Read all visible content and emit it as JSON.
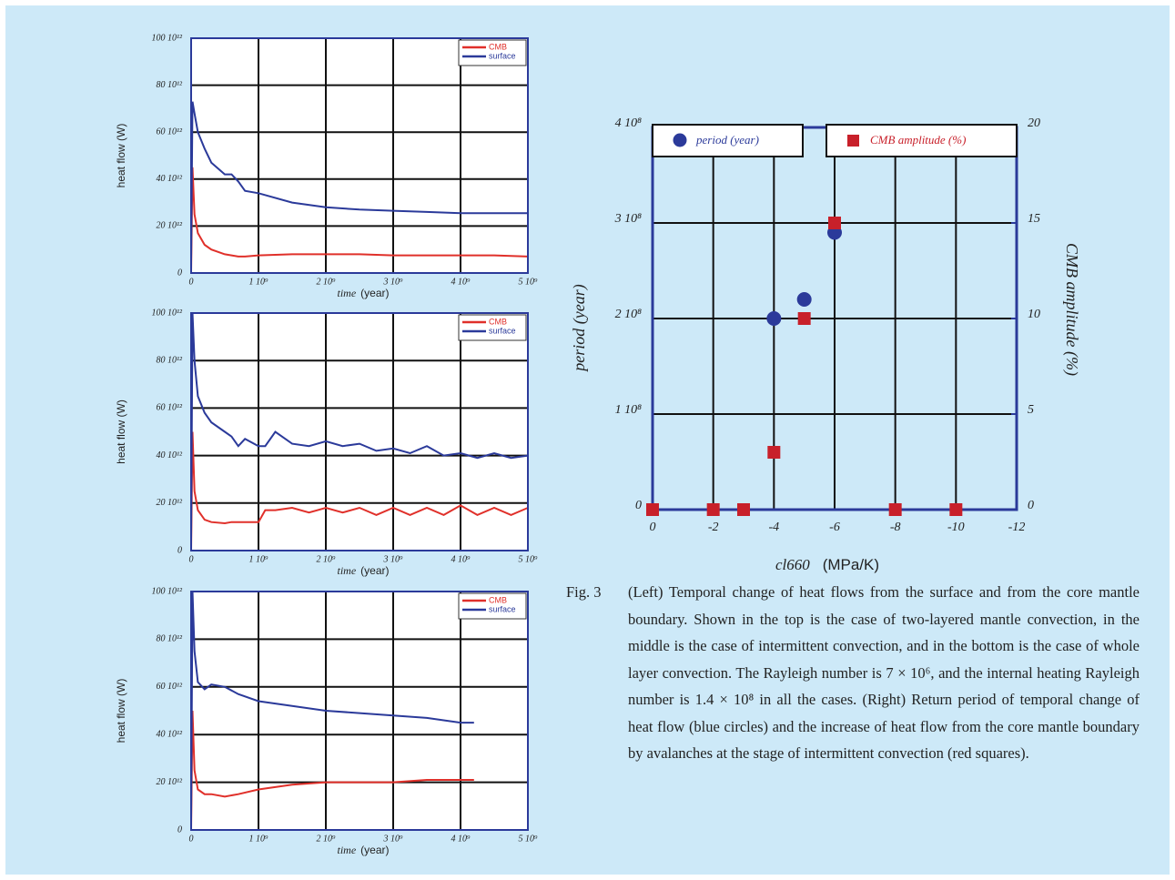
{
  "chart_data": [
    {
      "type": "line",
      "ylabel": "heat flow (W)",
      "xlabel": "time",
      "xlabel_unit": "(year)",
      "x": [
        0,
        20000000,
        50000000,
        100000000,
        200000000,
        300000000,
        500000000,
        600000000,
        700000000,
        800000000,
        1000000000,
        1500000000,
        2000000000,
        2500000000,
        3000000000,
        3500000000,
        4000000000,
        4500000000,
        5000000000
      ],
      "series": [
        {
          "name": "CMB",
          "color": "#e0302a",
          "values": [
            0,
            45000000000000,
            25000000000000,
            17000000000000,
            12000000000000,
            10000000000000,
            8000000000000,
            7500000000000,
            7000000000000,
            7000000000000,
            7500000000000,
            8000000000000,
            8000000000000,
            8000000000000,
            7500000000000,
            7500000000000,
            7500000000000,
            7500000000000,
            7000000000000
          ]
        },
        {
          "name": "surface",
          "color": "#2b3a9a",
          "values": [
            5000000000000,
            73000000000000,
            68000000000000,
            60000000000000,
            53000000000000,
            47000000000000,
            42000000000000,
            42000000000000,
            39000000000000,
            35000000000000,
            34000000000000,
            30000000000000,
            28000000000000,
            27000000000000,
            26500000000000,
            26000000000000,
            25500000000000,
            25500000000000,
            25500000000000
          ]
        }
      ],
      "xlim": [
        0,
        5000000000
      ],
      "xticks": [
        0,
        {
          "value": 1000000000,
          "label": "1 10⁹"
        },
        {
          "value": 2000000000,
          "label": "2 10⁹"
        },
        {
          "value": 3000000000,
          "label": "3 10⁹"
        },
        {
          "value": 4000000000,
          "label": "4 10⁹"
        },
        {
          "value": 5000000000,
          "label": "5 10⁹"
        }
      ],
      "ylim": [
        0,
        100000000000000
      ],
      "yticks": [
        0,
        {
          "value": 20000000000000,
          "label": "20 10¹²"
        },
        {
          "value": 40000000000000,
          "label": "40 10¹²"
        },
        {
          "value": 60000000000000,
          "label": "60 10¹²"
        },
        {
          "value": 80000000000000,
          "label": "80 10¹²"
        },
        {
          "value": 100000000000000,
          "label": "100 10¹²"
        }
      ],
      "grid": true,
      "legend": "upper right"
    },
    {
      "type": "line",
      "ylabel": "heat flow (W)",
      "xlabel": "time",
      "xlabel_unit": "(year)",
      "x": [
        0,
        20000000,
        50000000,
        100000000,
        200000000,
        300000000,
        500000000,
        600000000,
        700000000,
        800000000,
        1000000000,
        1100000000,
        1250000000,
        1500000000,
        1750000000,
        2000000000,
        2250000000,
        2500000000,
        2750000000,
        3000000000,
        3250000000,
        3500000000,
        3750000000,
        4000000000,
        4250000000,
        4500000000,
        4750000000,
        5000000000
      ],
      "series": [
        {
          "name": "CMB",
          "color": "#e0302a",
          "values": [
            0,
            50000000000000,
            25000000000000,
            17000000000000,
            13000000000000,
            12000000000000,
            11500000000000,
            12000000000000,
            12000000000000,
            12000000000000,
            12000000000000,
            17000000000000,
            17000000000000,
            18000000000000,
            16000000000000,
            18000000000000,
            16000000000000,
            18000000000000,
            15000000000000,
            18000000000000,
            15000000000000,
            18000000000000,
            15000000000000,
            19000000000000,
            15000000000000,
            18000000000000,
            15000000000000,
            18000000000000
          ]
        },
        {
          "name": "surface",
          "color": "#2b3a9a",
          "values": [
            5000000000000,
            100000000000000,
            80000000000000,
            65000000000000,
            58000000000000,
            54000000000000,
            50000000000000,
            48000000000000,
            44000000000000,
            47000000000000,
            44000000000000,
            44000000000000,
            50000000000000,
            45000000000000,
            44000000000000,
            46000000000000,
            44000000000000,
            45000000000000,
            42000000000000,
            43000000000000,
            41000000000000,
            44000000000000,
            40000000000000,
            41000000000000,
            39000000000000,
            41000000000000,
            39000000000000,
            40000000000000
          ]
        }
      ],
      "xlim": [
        0,
        5000000000
      ],
      "xticks": [
        0,
        {
          "value": 1000000000,
          "label": "1 10⁹"
        },
        {
          "value": 2000000000,
          "label": "2 10⁹"
        },
        {
          "value": 3000000000,
          "label": "3 10⁹"
        },
        {
          "value": 4000000000,
          "label": "4 10⁹"
        },
        {
          "value": 5000000000,
          "label": "5 10⁹"
        }
      ],
      "ylim": [
        0,
        100000000000000
      ],
      "yticks": [
        0,
        {
          "value": 20000000000000,
          "label": "20 10¹²"
        },
        {
          "value": 40000000000000,
          "label": "40 10¹²"
        },
        {
          "value": 60000000000000,
          "label": "60 10¹²"
        },
        {
          "value": 80000000000000,
          "label": "80 10¹²"
        },
        {
          "value": 100000000000000,
          "label": "100 10¹²"
        }
      ],
      "grid": true,
      "legend": "upper right"
    },
    {
      "type": "line",
      "ylabel": "heat flow (W)",
      "xlabel": "time",
      "xlabel_unit": "(year)",
      "x": [
        0,
        20000000,
        50000000,
        100000000,
        200000000,
        300000000,
        500000000,
        700000000,
        1000000000,
        1500000000,
        2000000000,
        2500000000,
        3000000000,
        3500000000,
        4000000000,
        4200000000
      ],
      "series": [
        {
          "name": "CMB",
          "color": "#e0302a",
          "values": [
            0,
            50000000000000,
            25000000000000,
            17000000000000,
            15000000000000,
            15000000000000,
            14000000000000,
            15000000000000,
            17000000000000,
            19000000000000,
            20000000000000,
            20000000000000,
            20000000000000,
            21000000000000,
            21000000000000,
            21000000000000
          ]
        },
        {
          "name": "surface",
          "color": "#2b3a9a",
          "values": [
            5000000000000,
            100000000000000,
            75000000000000,
            62000000000000,
            59000000000000,
            61000000000000,
            60000000000000,
            57000000000000,
            54000000000000,
            52000000000000,
            50000000000000,
            49000000000000,
            48000000000000,
            47000000000000,
            45000000000000,
            45000000000000
          ]
        }
      ],
      "xlim": [
        0,
        5000000000
      ],
      "xticks": [
        0,
        {
          "value": 1000000000,
          "label": "1 10⁹"
        },
        {
          "value": 2000000000,
          "label": "2 10⁹"
        },
        {
          "value": 3000000000,
          "label": "3 10⁹"
        },
        {
          "value": 4000000000,
          "label": "4 10⁹"
        },
        {
          "value": 5000000000,
          "label": "5 10⁹"
        }
      ],
      "ylim": [
        0,
        100000000000000
      ],
      "yticks": [
        0,
        {
          "value": 20000000000000,
          "label": "20 10¹²"
        },
        {
          "value": 40000000000000,
          "label": "40 10¹²"
        },
        {
          "value": 60000000000000,
          "label": "60 10¹²"
        },
        {
          "value": 80000000000000,
          "label": "80 10¹²"
        },
        {
          "value": 100000000000000,
          "label": "100 10¹²"
        }
      ],
      "grid": true,
      "legend": "upper right"
    },
    {
      "type": "scatter",
      "ylabel": "period (year)",
      "y2label": "CMB amplitude (%)",
      "xlabel": "cl660",
      "xlabel_unit": "(MPa/K)",
      "series": [
        {
          "name": "period (year)",
          "color": "#2b3a9a",
          "marker": "circle",
          "x": [
            -4,
            -5,
            -6
          ],
          "values": [
            200000000,
            220000000,
            290000000
          ]
        },
        {
          "name": "CMB amplitude (%)",
          "color": "#c8202a",
          "marker": "square",
          "axis": "y2",
          "x": [
            0,
            -2,
            -3,
            -4,
            -5,
            -6,
            -8,
            -10
          ],
          "values": [
            0,
            0,
            0,
            3,
            10,
            15,
            0,
            0
          ]
        }
      ],
      "xlim": [
        0,
        -12
      ],
      "xticks": [
        0,
        -2,
        -4,
        -6,
        -8,
        -10,
        -12
      ],
      "ylim": [
        0,
        400000000
      ],
      "yticks": [
        0,
        {
          "value": 100000000,
          "label": "1 10⁸"
        },
        {
          "value": 200000000,
          "label": "2 10⁸"
        },
        {
          "value": 300000000,
          "label": "3 10⁸"
        },
        {
          "value": 400000000,
          "label": "4 10⁸"
        }
      ],
      "y2lim": [
        0,
        20
      ],
      "y2ticks": [
        0,
        5,
        10,
        15,
        20
      ],
      "grid": true,
      "legend": "top"
    }
  ],
  "caption": {
    "label": "Fig. 3",
    "text": "(Left) Temporal change of heat flows from the surface and from the core mantle boundary. Shown in the top is the case of two-layered mantle convection, in the middle is the case of intermittent convection, and in the bottom is the case of whole layer convection. The Rayleigh number is 7 × 10⁶, and the internal heating Rayleigh number is 1.4 × 10⁸ in all the cases. (Right) Return period of temporal change of heat flow (blue circles) and the increase of heat flow from the core mantle boundary by avalanches at the stage of intermittent convection (red squares)."
  }
}
